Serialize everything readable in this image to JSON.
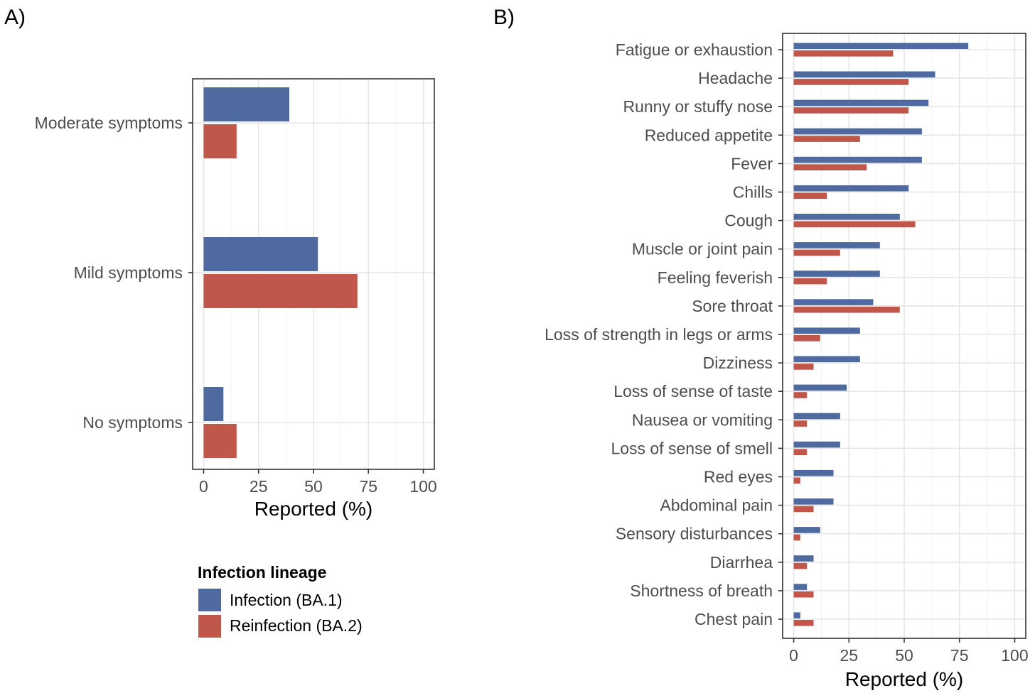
{
  "colors": {
    "infection": "#4e6a9f",
    "reinfection": "#c0574a"
  },
  "legend": {
    "title": "Infection lineage",
    "items": [
      "Infection (BA.1)",
      "Reinfection (BA.2)"
    ]
  },
  "chart_data": [
    {
      "type": "bar",
      "orientation": "horizontal",
      "panel_label": "A)",
      "categories": [
        "Moderate symptoms",
        "Mild symptoms",
        "No symptoms"
      ],
      "series": [
        {
          "name": "Infection (BA.1)",
          "values": [
            39,
            52,
            9
          ]
        },
        {
          "name": "Reinfection (BA.2)",
          "values": [
            15,
            70,
            15
          ]
        }
      ],
      "xlabel": "Reported (%)",
      "xlim": [
        -5,
        105
      ],
      "xticks": [
        "0",
        "25",
        "50",
        "75",
        "100"
      ],
      "grid": true
    },
    {
      "type": "bar",
      "orientation": "horizontal",
      "panel_label": "B)",
      "categories": [
        "Fatigue or exhaustion",
        "Headache",
        "Runny or stuffy nose",
        "Reduced appetite",
        "Fever",
        "Chills",
        "Cough",
        "Muscle or joint pain",
        "Feeling feverish",
        "Sore throat",
        "Loss of strength in legs or arms",
        "Dizziness",
        "Loss of sense of taste",
        "Nausea or vomiting",
        "Loss of sense of smell",
        "Red eyes",
        "Abdominal pain",
        "Sensory disturbances",
        "Diarrhea",
        "Shortness of breath",
        "Chest pain"
      ],
      "series": [
        {
          "name": "Infection (BA.1)",
          "values": [
            79,
            64,
            61,
            58,
            58,
            52,
            48,
            39,
            39,
            36,
            30,
            30,
            24,
            21,
            21,
            18,
            18,
            12,
            9,
            6,
            3
          ]
        },
        {
          "name": "Reinfection (BA.2)",
          "values": [
            45,
            52,
            52,
            30,
            33,
            15,
            55,
            21,
            15,
            48,
            12,
            9,
            6,
            6,
            6,
            3,
            9,
            3,
            6,
            9,
            9
          ]
        }
      ],
      "xlabel": "Reported (%)",
      "xlim": [
        -5,
        105
      ],
      "xticks": [
        "0",
        "25",
        "50",
        "75",
        "100"
      ],
      "grid": true
    }
  ]
}
